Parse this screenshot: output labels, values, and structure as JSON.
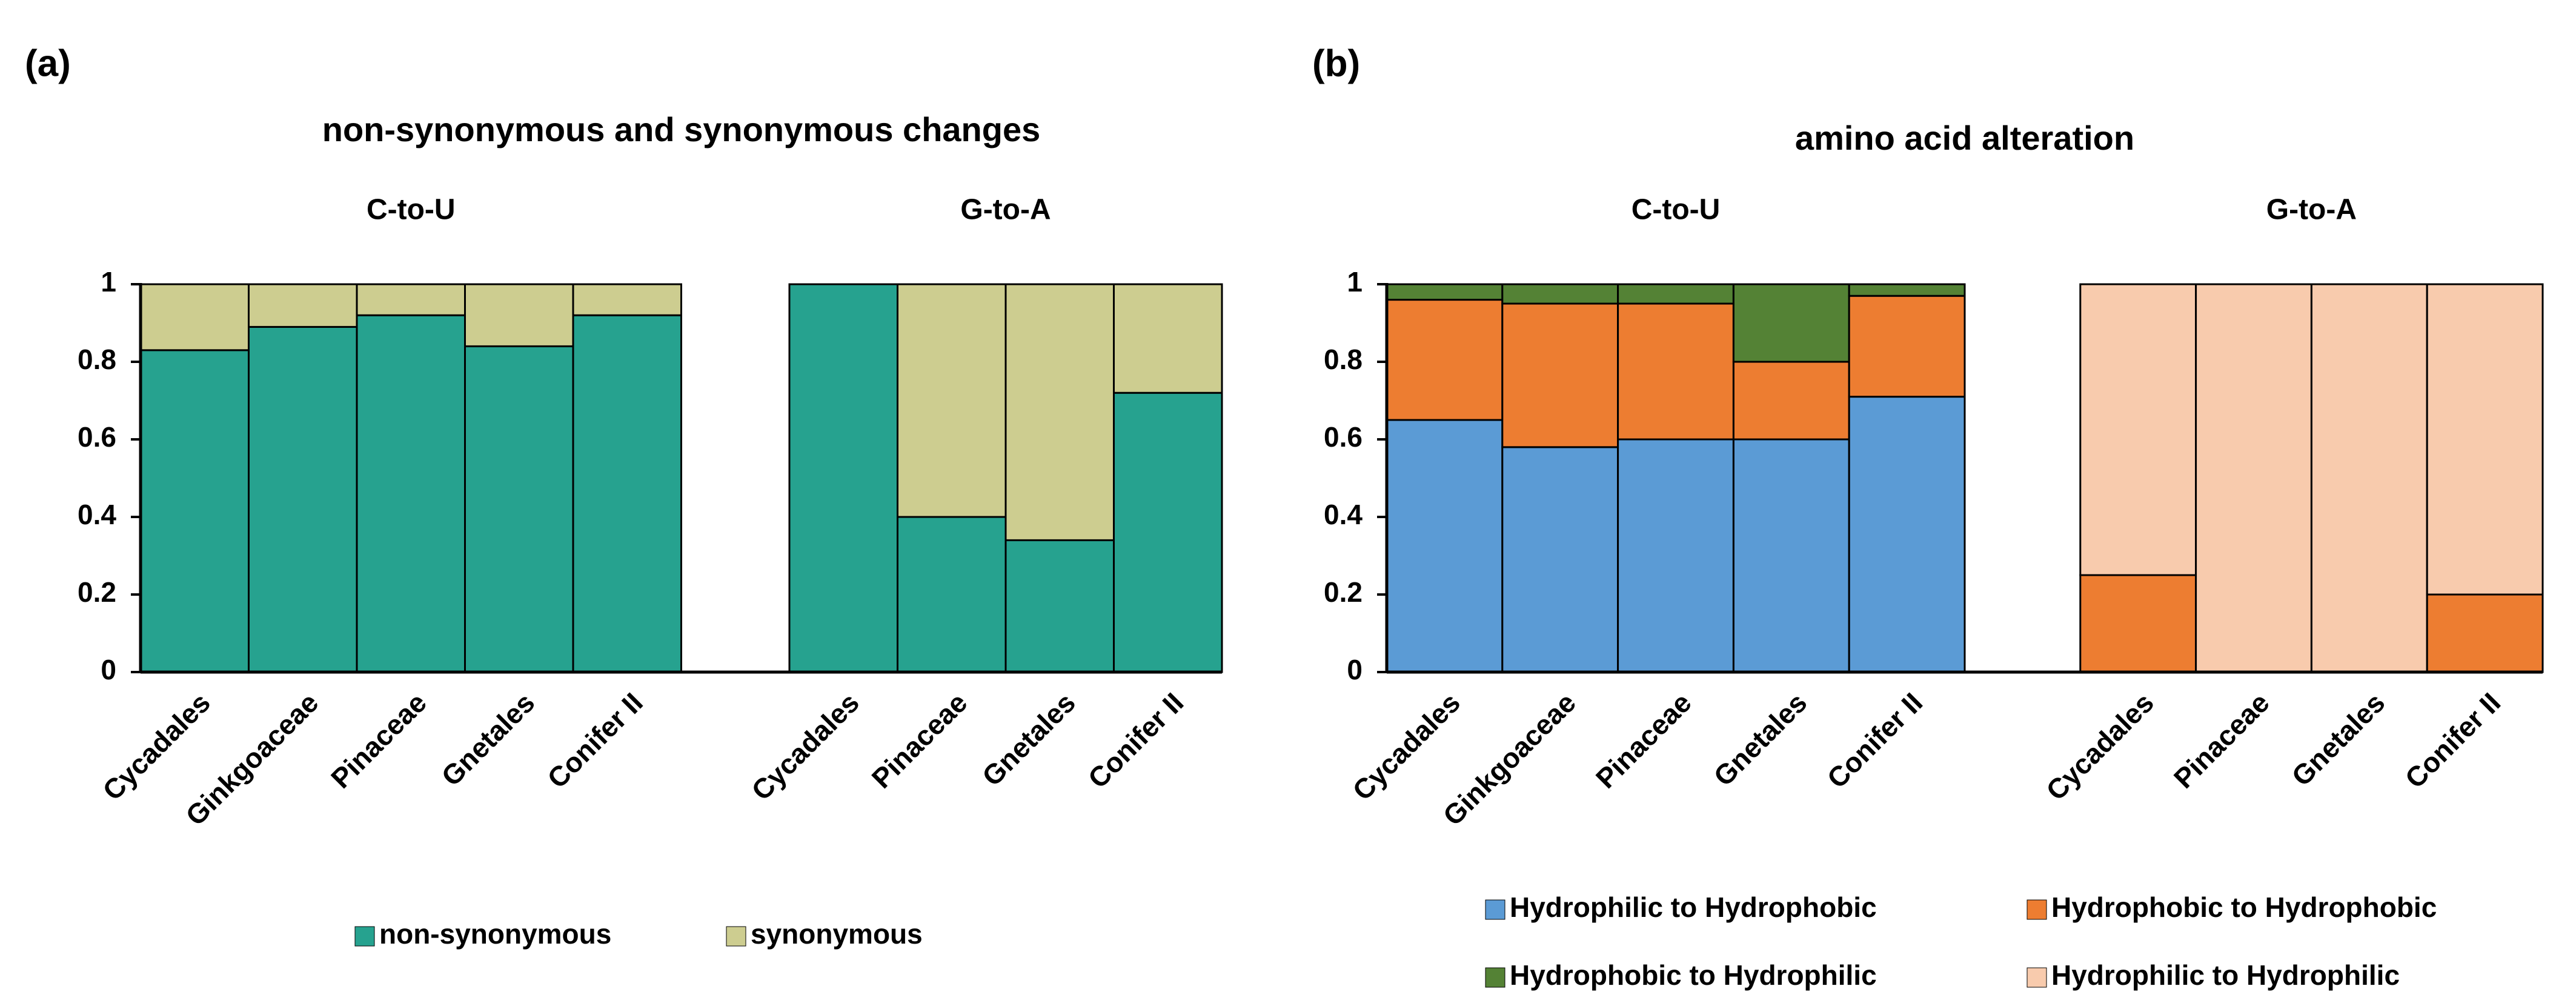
{
  "chart_data": [
    {
      "type": "bar",
      "stacked": true,
      "panel_label": "(a)",
      "title": "non-synonymous and synonymous changes",
      "group_labels": [
        "C-to-U",
        "G-to-A"
      ],
      "categories": [
        "Cycadales",
        "Ginkgoaceae",
        "Pinaceae",
        "Gnetales",
        "Conifer II",
        null,
        "Cycadales",
        "Pinaceae",
        "Gnetales",
        "Conifer II"
      ],
      "series": [
        {
          "name": "non-synonymous",
          "color": "#26a28f",
          "values": [
            0.83,
            0.89,
            0.92,
            0.84,
            0.92,
            null,
            1,
            0.4,
            0.34,
            0.72
          ]
        },
        {
          "name": "synonymous",
          "color": "#cdcd90",
          "values": [
            0.17,
            0.11,
            0.08,
            0.16,
            0.08,
            null,
            0,
            0.6,
            0.66,
            0.28
          ]
        }
      ],
      "ylim": [
        0,
        1
      ],
      "yticks": [
        0,
        0.2,
        0.4,
        0.6,
        0.8,
        1
      ],
      "legend": "bottom"
    },
    {
      "type": "bar",
      "stacked": true,
      "panel_label": "(b)",
      "title": "amino acid alteration",
      "group_labels": [
        "C-to-U",
        "G-to-A"
      ],
      "categories": [
        "Cycadales",
        "Ginkgoaceae",
        "Pinaceae",
        "Gnetales",
        "Conifer II",
        null,
        "Cycadales",
        "Pinaceae",
        "Gnetales",
        "Conifer II"
      ],
      "series": [
        {
          "name": "Hydrophilic to Hydrophobic",
          "color": "#5b9bd5",
          "values": [
            0.65,
            0.58,
            0.6,
            0.6,
            0.71,
            null,
            0,
            0,
            0,
            0
          ]
        },
        {
          "name": "Hydrophobic to Hydrophobic",
          "color": "#ed7d31",
          "values": [
            0.31,
            0.37,
            0.35,
            0.2,
            0.26,
            null,
            0.25,
            0,
            0,
            0.2
          ]
        },
        {
          "name": "Hydrophobic to Hydrophilic",
          "color": "#548235",
          "values": [
            0.04,
            0.05,
            0.05,
            0.2,
            0.03,
            null,
            0,
            0,
            0,
            0
          ]
        },
        {
          "name": "Hydrophilic to Hydrophilic",
          "color": "#f8cbad",
          "values": [
            0,
            0,
            0,
            0,
            0,
            null,
            0.75,
            1,
            1,
            0.8
          ]
        }
      ],
      "ylim": [
        0,
        1
      ],
      "yticks": [
        0,
        0.2,
        0.4,
        0.6,
        0.8,
        1
      ],
      "legend": "bottom"
    }
  ]
}
